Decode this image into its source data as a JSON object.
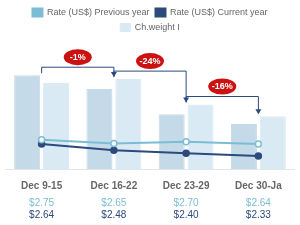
{
  "chart_data": {
    "type": "bar",
    "categories": [
      "Dec 9-15",
      "Dec 16-22",
      "Dec 23-29",
      "Dec 30-Ja"
    ],
    "series": [
      {
        "values": [
          4.8,
          4.1,
          2.8,
          2.3
        ],
        "color": "#c5dae8"
      },
      {
        "name": "Ch.weight I",
        "values": [
          4.4,
          4.6,
          3.3,
          2.7
        ],
        "color": "#daeaf5"
      },
      {
        "name": "Rate (US$) Previous year",
        "type": "line",
        "axis": "y2",
        "values": [
          2.75,
          2.65,
          2.7,
          2.64
        ],
        "value_labels": [
          "$2.75",
          "$2.65",
          "$2.70",
          "$2.64"
        ],
        "color": "#7bbdd4",
        "marker": "circle-open"
      },
      {
        "name": "Rate (US$) Current year",
        "type": "line",
        "axis": "y2",
        "values": [
          2.64,
          2.48,
          2.4,
          2.33
        ],
        "value_labels": [
          "$2.64",
          "$2.48",
          "$2.40",
          "$2.33"
        ],
        "color": "#2c4a7c",
        "marker": "circle"
      }
    ],
    "ylim": [
      0,
      6.5
    ],
    "yticks": [],
    "y2lim": [
      2.0,
      5.25
    ],
    "y2ticks": [],
    "tick_labels": "x",
    "grid": false,
    "legend": "top",
    "annotations": [
      "-1%",
      "-24%",
      "-16%"
    ]
  }
}
